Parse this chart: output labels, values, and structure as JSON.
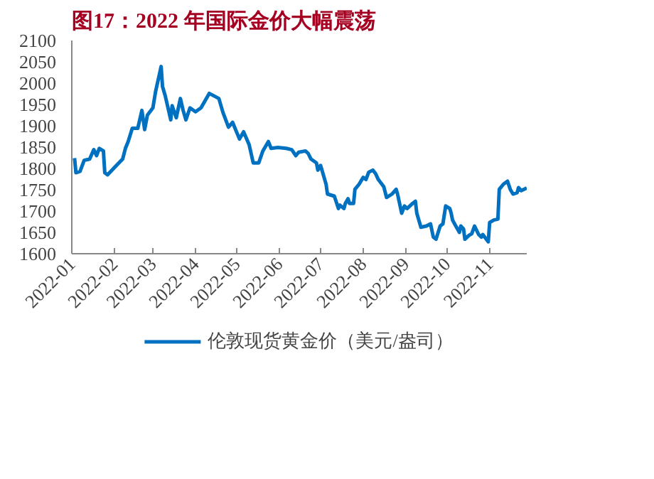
{
  "chart_data": {
    "type": "line",
    "title": "图17：2022 年国际金价大幅震荡",
    "x": [
      "2022-01-03",
      "2022-01-04",
      "2022-01-07",
      "2022-01-10",
      "2022-01-14",
      "2022-01-17",
      "2022-01-19",
      "2022-01-21",
      "2022-01-24",
      "2022-01-25",
      "2022-01-27",
      "2022-02-01",
      "2022-02-07",
      "2022-02-09",
      "2022-02-11",
      "2022-02-14",
      "2022-02-18",
      "2022-02-21",
      "2022-02-23",
      "2022-02-25",
      "2022-03-01",
      "2022-03-03",
      "2022-03-07",
      "2022-03-08",
      "2022-03-10",
      "2022-03-14",
      "2022-03-15",
      "2022-03-18",
      "2022-03-21",
      "2022-03-23",
      "2022-03-25",
      "2022-03-28",
      "2022-04-01",
      "2022-04-05",
      "2022-04-11",
      "2022-04-18",
      "2022-04-21",
      "2022-04-25",
      "2022-04-28",
      "2022-05-03",
      "2022-05-06",
      "2022-05-10",
      "2022-05-13",
      "2022-05-17",
      "2022-05-20",
      "2022-05-24",
      "2022-05-26",
      "2022-05-31",
      "2022-06-06",
      "2022-06-10",
      "2022-06-13",
      "2022-06-15",
      "2022-06-20",
      "2022-06-22",
      "2022-06-24",
      "2022-06-28",
      "2022-06-29",
      "2022-07-01",
      "2022-07-05",
      "2022-07-06",
      "2022-07-11",
      "2022-07-14",
      "2022-07-15",
      "2022-07-18",
      "2022-07-19",
      "2022-07-21",
      "2022-07-22",
      "2022-07-25",
      "2022-07-26",
      "2022-07-29",
      "2022-08-01",
      "2022-08-03",
      "2022-08-05",
      "2022-08-08",
      "2022-08-10",
      "2022-08-12",
      "2022-08-16",
      "2022-08-18",
      "2022-08-22",
      "2022-08-25",
      "2022-08-26",
      "2022-08-29",
      "2022-08-31",
      "2022-09-02",
      "2022-09-06",
      "2022-09-08",
      "2022-09-09",
      "2022-09-12",
      "2022-09-16",
      "2022-09-19",
      "2022-09-21",
      "2022-09-23",
      "2022-09-26",
      "2022-09-28",
      "2022-09-30",
      "2022-10-03",
      "2022-10-04",
      "2022-10-05",
      "2022-10-07",
      "2022-10-10",
      "2022-10-11",
      "2022-10-13",
      "2022-10-14",
      "2022-10-17",
      "2022-10-19",
      "2022-10-21",
      "2022-10-24",
      "2022-10-26",
      "2022-10-27",
      "2022-10-31",
      "2022-11-01",
      "2022-11-04",
      "2022-11-07",
      "2022-11-08",
      "2022-11-11",
      "2022-11-14",
      "2022-11-16",
      "2022-11-18",
      "2022-11-21",
      "2022-11-22",
      "2022-11-24",
      "2022-11-28"
    ],
    "series": [
      {
        "name": "伦敦现货黄金价（美元/盎司）",
        "color": "#0070c0",
        "values": [
          1824,
          1790,
          1793,
          1819,
          1822,
          1844,
          1830,
          1847,
          1841,
          1790,
          1785,
          1802,
          1822,
          1847,
          1863,
          1894,
          1894,
          1936,
          1891,
          1925,
          1942,
          1981,
          2039,
          1992,
          1970,
          1914,
          1947,
          1919,
          1964,
          1936,
          1914,
          1942,
          1933,
          1942,
          1976,
          1964,
          1931,
          1897,
          1908,
          1869,
          1886,
          1856,
          1813,
          1813,
          1841,
          1863,
          1847,
          1849,
          1847,
          1844,
          1830,
          1838,
          1841,
          1835,
          1822,
          1813,
          1796,
          1807,
          1763,
          1740,
          1735,
          1706,
          1714,
          1706,
          1718,
          1729,
          1718,
          1718,
          1751,
          1763,
          1779,
          1774,
          1791,
          1796,
          1788,
          1774,
          1757,
          1732,
          1740,
          1751,
          1740,
          1695,
          1712,
          1706,
          1718,
          1723,
          1695,
          1662,
          1665,
          1670,
          1639,
          1634,
          1665,
          1670,
          1712,
          1706,
          1695,
          1679,
          1667,
          1650,
          1665,
          1658,
          1634,
          1643,
          1647,
          1665,
          1645,
          1639,
          1645,
          1628,
          1673,
          1679,
          1681,
          1751,
          1763,
          1770,
          1751,
          1740,
          1743,
          1755,
          1748,
          1754
        ]
      }
    ],
    "xlim": [
      "2022-01-01",
      "2022-11-28"
    ],
    "xticks": [
      "2022-01",
      "2022-02",
      "2022-03",
      "2022-04",
      "2022-05",
      "2022-06",
      "2022-07",
      "2022-08",
      "2022-09",
      "2022-10",
      "2022-11"
    ],
    "ylim": [
      1600,
      2100
    ],
    "yticks": [
      1600,
      1650,
      1700,
      1750,
      1800,
      1850,
      1900,
      1950,
      2000,
      2050,
      2100
    ],
    "legend": "bottom",
    "grid": false,
    "marker": "none",
    "line_style": "solid"
  }
}
